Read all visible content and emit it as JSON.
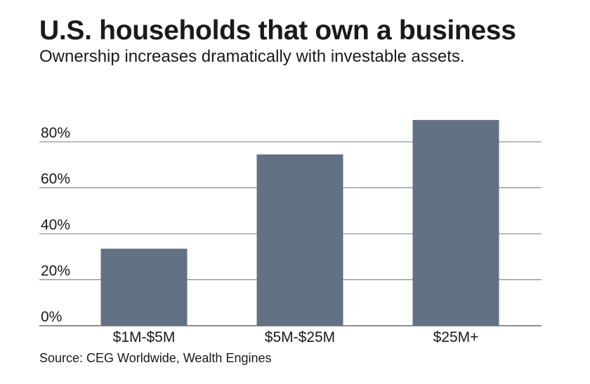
{
  "chart_data": {
    "type": "bar",
    "title": "U.S. households that own a business",
    "subtitle": "Ownership increases dramatically with investable assets.",
    "categories": [
      "$1M-$5M",
      "$5M-$25M",
      "$25M+"
    ],
    "values": [
      33.5,
      74.5,
      89.5
    ],
    "y_ticks": [
      "0%",
      "20%",
      "40%",
      "60%",
      "80%"
    ],
    "y_tick_values": [
      0,
      20,
      40,
      60,
      80
    ],
    "ylim": [
      0,
      80
    ],
    "xlabel": "",
    "ylabel": "",
    "grid": true,
    "bar_color": "#637185",
    "grid_color": "#4a4a4a",
    "source": "Source: CEG Worldwide, Wealth Engines"
  }
}
